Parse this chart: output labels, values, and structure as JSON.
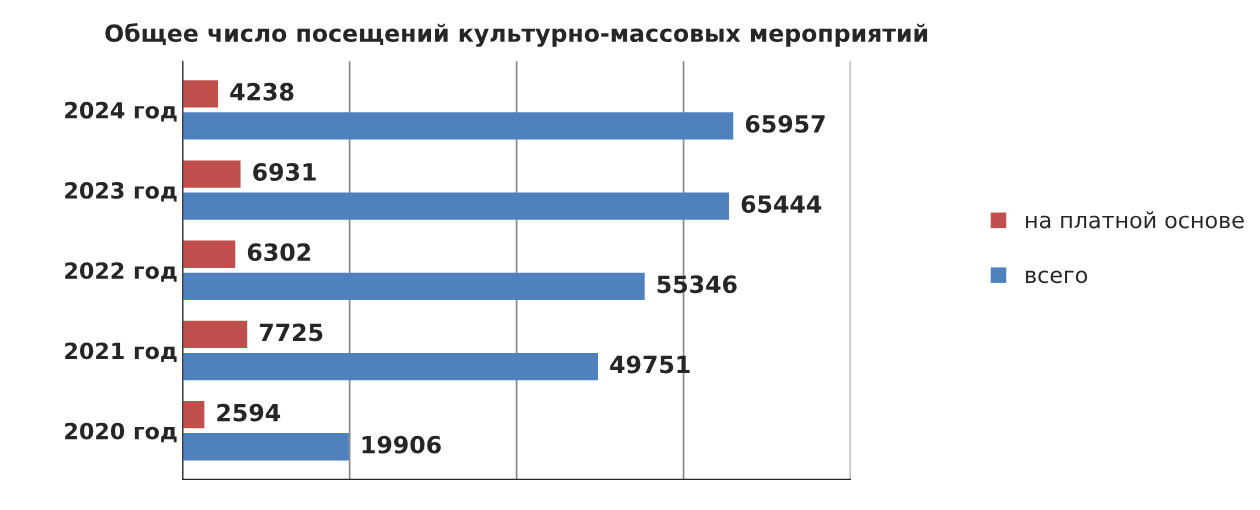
{
  "chart_data": {
    "type": "bar",
    "orientation": "horizontal",
    "title": "Общее число посещений культурно-массовых мероприятий",
    "categories": [
      "2024 год",
      "2023 год",
      "2022 год",
      "2021 год",
      "2020 год"
    ],
    "series": [
      {
        "name": "на платной основе",
        "color": "#c0504d",
        "values": [
          4238,
          6931,
          6302,
          7725,
          2594
        ]
      },
      {
        "name": "всего",
        "color": "#4f81bd",
        "values": [
          65957,
          65444,
          55346,
          49751,
          19906
        ]
      }
    ],
    "xlim": [
      0,
      80000
    ],
    "xticks": [
      {
        "value": 0,
        "label": null
      },
      {
        "value": 20000,
        "label": null
      },
      {
        "value": 40000,
        "label": null
      },
      {
        "value": 60000,
        "label": null
      },
      {
        "value": 80000,
        "label": null
      }
    ],
    "tick_labels": "y",
    "grid": "x",
    "legend": "right",
    "data_labels": true
  }
}
